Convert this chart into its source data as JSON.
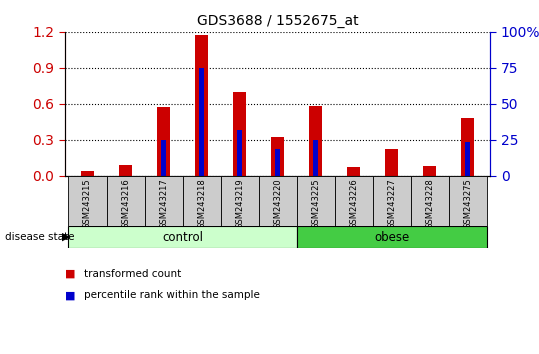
{
  "title": "GDS3688 / 1552675_at",
  "categories": [
    "GSM243215",
    "GSM243216",
    "GSM243217",
    "GSM243218",
    "GSM243219",
    "GSM243220",
    "GSM243225",
    "GSM243226",
    "GSM243227",
    "GSM243228",
    "GSM243275"
  ],
  "transformed_count": [
    0.04,
    0.09,
    0.57,
    1.17,
    0.7,
    0.32,
    0.58,
    0.07,
    0.22,
    0.08,
    0.48
  ],
  "percentile_rank_scaled": [
    0.0,
    0.0,
    0.3,
    0.9,
    0.38,
    0.22,
    0.3,
    0.0,
    0.0,
    0.0,
    0.28
  ],
  "control_indices": [
    0,
    1,
    2,
    3,
    4,
    5
  ],
  "obese_indices": [
    6,
    7,
    8,
    9,
    10
  ],
  "ylim_left": [
    0.0,
    1.2
  ],
  "ylim_right": [
    0,
    100
  ],
  "yticks_left": [
    0.0,
    0.3,
    0.6,
    0.9,
    1.2
  ],
  "yticks_right": [
    0,
    25,
    50,
    75,
    100
  ],
  "bar_color_red": "#cc0000",
  "bar_color_blue": "#0000cc",
  "control_color": "#ccffcc",
  "obese_color": "#44cc44",
  "tick_bg_color": "#cccccc",
  "left_axis_color": "#cc0000",
  "right_axis_color": "#0000cc",
  "bar_width": 0.35,
  "blue_bar_width": 0.12,
  "grid_color": "#000000"
}
